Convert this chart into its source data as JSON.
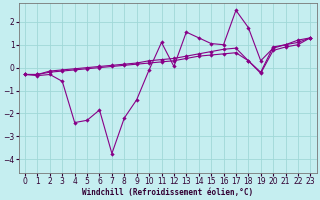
{
  "background_color": "#c5eef0",
  "grid_color": "#a0d8d8",
  "line_color": "#880088",
  "xlabel": "Windchill (Refroidissement éolien,°C)",
  "xlim": [
    -0.5,
    23.5
  ],
  "ylim": [
    -4.6,
    2.8
  ],
  "yticks": [
    -4,
    -3,
    -2,
    -1,
    0,
    1,
    2
  ],
  "xticks": [
    0,
    1,
    2,
    3,
    4,
    5,
    6,
    7,
    8,
    9,
    10,
    11,
    12,
    13,
    14,
    15,
    16,
    17,
    18,
    19,
    20,
    21,
    22,
    23
  ],
  "series": [
    {
      "x": [
        0,
        1,
        2,
        3,
        4,
        5,
        6,
        7,
        8,
        9,
        10,
        11,
        12,
        13,
        14,
        15,
        16,
        17,
        18,
        19,
        20,
        21,
        22,
        23
      ],
      "y": [
        -0.3,
        -0.3,
        -0.2,
        -0.15,
        -0.1,
        -0.05,
        0.0,
        0.05,
        0.1,
        0.15,
        0.2,
        0.25,
        0.3,
        0.4,
        0.5,
        0.55,
        0.6,
        0.65,
        0.3,
        -0.25,
        0.75,
        0.9,
        1.0,
        1.3
      ]
    },
    {
      "x": [
        0,
        1,
        2,
        3,
        4,
        5,
        6,
        7,
        8,
        9,
        10,
        11,
        12,
        13,
        14,
        15,
        16,
        17,
        18,
        19,
        20,
        21,
        22,
        23
      ],
      "y": [
        -0.3,
        -0.3,
        -0.15,
        -0.1,
        -0.05,
        0.0,
        0.05,
        0.1,
        0.15,
        0.2,
        0.3,
        0.35,
        0.4,
        0.5,
        0.6,
        0.7,
        0.8,
        0.85,
        0.3,
        -0.2,
        0.9,
        1.0,
        1.1,
        1.3
      ]
    },
    {
      "x": [
        0,
        1,
        2,
        3,
        4,
        5,
        6,
        7,
        8,
        9,
        10,
        11,
        12,
        13,
        14,
        15,
        16,
        17,
        18,
        19,
        20,
        21,
        22,
        23
      ],
      "y": [
        -0.3,
        -0.35,
        -0.3,
        -0.6,
        -2.4,
        -2.3,
        -1.85,
        -3.75,
        -2.2,
        -1.4,
        -0.1,
        1.1,
        0.05,
        1.55,
        1.3,
        1.05,
        1.0,
        2.5,
        1.75,
        0.3,
        0.85,
        1.0,
        1.2,
        1.3
      ]
    }
  ]
}
